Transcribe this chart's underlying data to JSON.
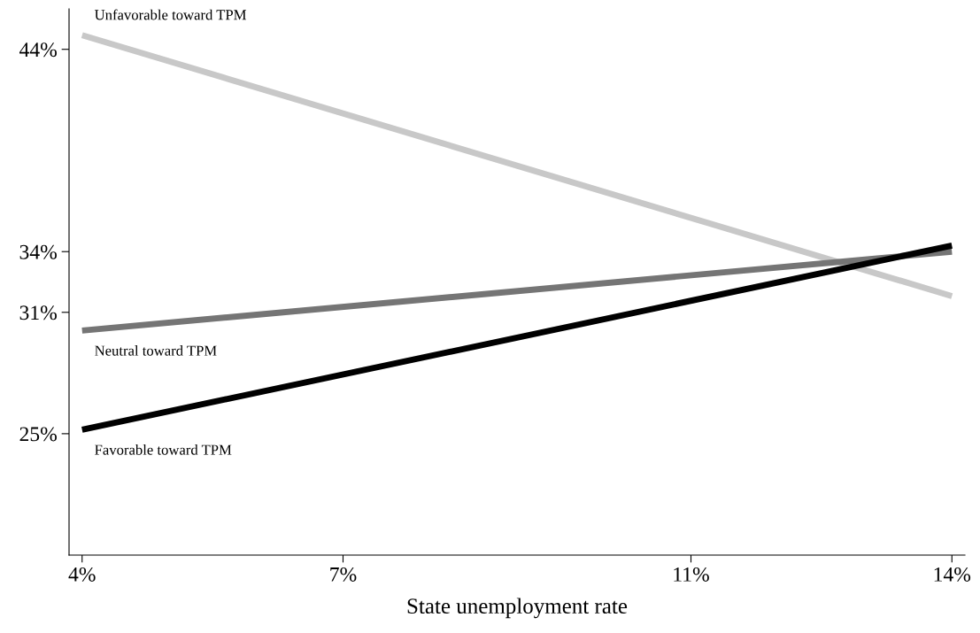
{
  "chart_data": {
    "type": "line",
    "xlabel": "State unemployment rate",
    "x": [
      4,
      14
    ],
    "series": [
      {
        "name": "Unfavorable toward TPM",
        "color": "#c8c8c8",
        "values": [
          44.7,
          31.8
        ]
      },
      {
        "name": "Neutral toward TPM",
        "color": "#757575",
        "values": [
          30.1,
          34.0
        ]
      },
      {
        "name": "Favorable toward TPM",
        "color": "#000000",
        "values": [
          25.2,
          34.3
        ]
      }
    ],
    "xlim": [
      3.85,
      14.15
    ],
    "ylim": [
      19,
      46
    ],
    "xticks": [
      {
        "value": 4,
        "label": "4%"
      },
      {
        "value": 7,
        "label": "7%"
      },
      {
        "value": 11,
        "label": "11%"
      },
      {
        "value": 14,
        "label": "14%"
      }
    ],
    "yticks": [
      {
        "value": 25,
        "label": "25%"
      },
      {
        "value": 31,
        "label": "31%"
      },
      {
        "value": 34,
        "label": "34%"
      },
      {
        "value": 44,
        "label": "44%"
      }
    ],
    "grid": false,
    "legend": false,
    "marker": "none",
    "line_style": "solid"
  }
}
